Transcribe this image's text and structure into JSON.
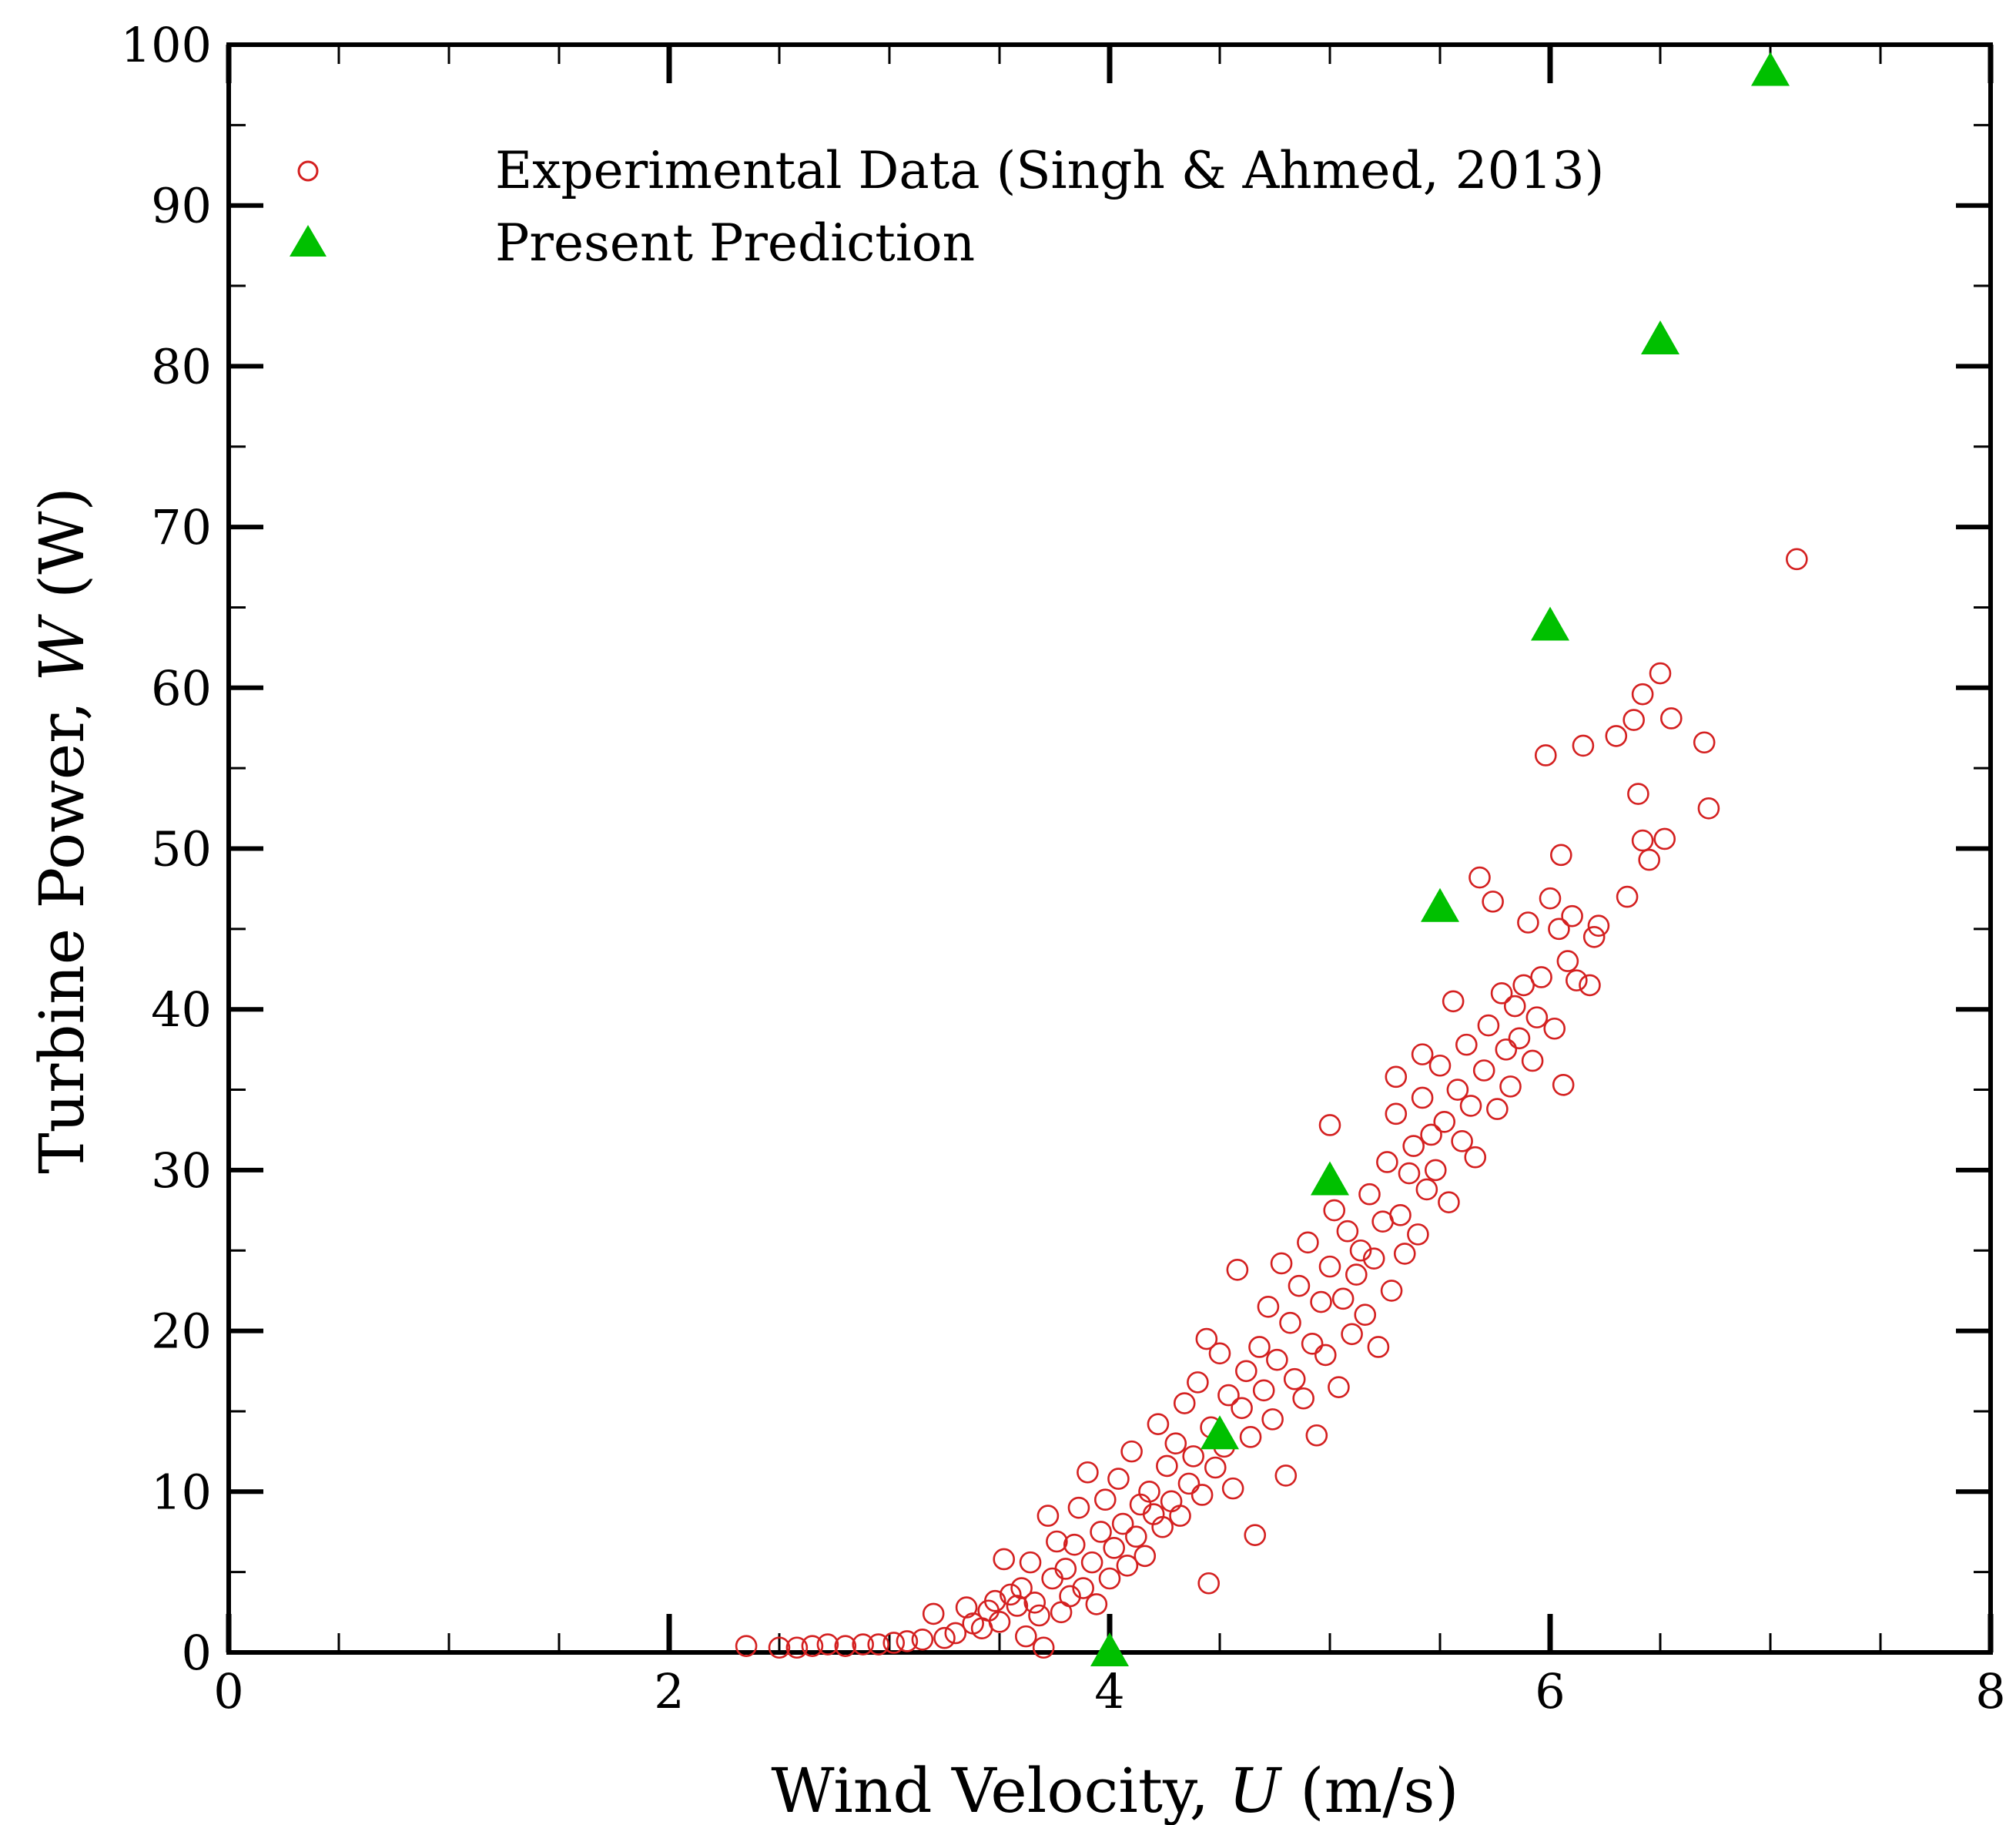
{
  "chart_data": {
    "type": "scatter",
    "title": "",
    "xlabel": {
      "prefix": "Wind Velocity, ",
      "var": "U",
      "suffix": " (m/s)"
    },
    "ylabel": {
      "prefix": "Turbine Power, ",
      "var": "W",
      "suffix": " (W)"
    },
    "xlim": [
      0,
      8
    ],
    "ylim": [
      0,
      100
    ],
    "xticks": [
      0,
      2,
      4,
      6,
      8
    ],
    "yticks": [
      0,
      10,
      20,
      30,
      40,
      50,
      60,
      70,
      80,
      90,
      100
    ],
    "grid": false,
    "legend_position": "top-left",
    "series": [
      {
        "name": "Experimental Data (Singh & Ahmed, 2013)",
        "marker": "open-circle",
        "color": "#d42020",
        "points": [
          [
            2.35,
            0.4
          ],
          [
            2.5,
            0.3
          ],
          [
            2.58,
            0.3
          ],
          [
            2.65,
            0.4
          ],
          [
            2.72,
            0.5
          ],
          [
            2.8,
            0.4
          ],
          [
            2.88,
            0.5
          ],
          [
            2.95,
            0.5
          ],
          [
            3.02,
            0.6
          ],
          [
            3.08,
            0.7
          ],
          [
            3.15,
            0.8
          ],
          [
            3.2,
            2.4
          ],
          [
            3.25,
            0.9
          ],
          [
            3.3,
            1.2
          ],
          [
            3.35,
            2.8
          ],
          [
            3.38,
            1.8
          ],
          [
            3.42,
            1.5
          ],
          [
            3.45,
            2.6
          ],
          [
            3.48,
            3.2
          ],
          [
            3.5,
            1.9
          ],
          [
            3.52,
            5.8
          ],
          [
            3.55,
            3.6
          ],
          [
            3.58,
            2.9
          ],
          [
            3.6,
            4.0
          ],
          [
            3.62,
            1.0
          ],
          [
            3.64,
            5.6
          ],
          [
            3.66,
            3.1
          ],
          [
            3.68,
            2.3
          ],
          [
            3.7,
            0.3
          ],
          [
            3.72,
            8.5
          ],
          [
            3.74,
            4.6
          ],
          [
            3.76,
            6.9
          ],
          [
            3.78,
            2.5
          ],
          [
            3.8,
            5.2
          ],
          [
            3.82,
            3.5
          ],
          [
            3.84,
            6.7
          ],
          [
            3.86,
            9.0
          ],
          [
            3.88,
            4.0
          ],
          [
            3.9,
            11.2
          ],
          [
            3.92,
            5.6
          ],
          [
            3.94,
            3.0
          ],
          [
            3.96,
            7.5
          ],
          [
            3.98,
            9.5
          ],
          [
            4.0,
            4.6
          ],
          [
            4.02,
            6.5
          ],
          [
            4.04,
            10.8
          ],
          [
            4.06,
            8.0
          ],
          [
            4.08,
            5.4
          ],
          [
            4.1,
            12.5
          ],
          [
            4.12,
            7.2
          ],
          [
            4.14,
            9.2
          ],
          [
            4.16,
            6.0
          ],
          [
            4.18,
            10.0
          ],
          [
            4.2,
            8.6
          ],
          [
            4.22,
            14.2
          ],
          [
            4.24,
            7.8
          ],
          [
            4.26,
            11.6
          ],
          [
            4.28,
            9.4
          ],
          [
            4.3,
            13.0
          ],
          [
            4.32,
            8.5
          ],
          [
            4.34,
            15.5
          ],
          [
            4.36,
            10.5
          ],
          [
            4.38,
            12.2
          ],
          [
            4.4,
            16.8
          ],
          [
            4.42,
            9.8
          ],
          [
            4.44,
            19.5
          ],
          [
            4.45,
            4.3
          ],
          [
            4.46,
            14.0
          ],
          [
            4.48,
            11.5
          ],
          [
            4.5,
            18.6
          ],
          [
            4.52,
            12.8
          ],
          [
            4.54,
            16.0
          ],
          [
            4.56,
            10.2
          ],
          [
            4.58,
            23.8
          ],
          [
            4.6,
            15.2
          ],
          [
            4.62,
            17.5
          ],
          [
            4.64,
            13.4
          ],
          [
            4.66,
            7.3
          ],
          [
            4.68,
            19.0
          ],
          [
            4.7,
            16.3
          ],
          [
            4.72,
            21.5
          ],
          [
            4.74,
            14.5
          ],
          [
            4.76,
            18.2
          ],
          [
            4.78,
            24.2
          ],
          [
            4.8,
            11.0
          ],
          [
            4.82,
            20.5
          ],
          [
            4.84,
            17.0
          ],
          [
            4.86,
            22.8
          ],
          [
            4.88,
            15.8
          ],
          [
            4.9,
            25.5
          ],
          [
            4.92,
            19.2
          ],
          [
            4.94,
            13.5
          ],
          [
            4.96,
            21.8
          ],
          [
            4.98,
            18.5
          ],
          [
            5.0,
            24.0
          ],
          [
            5.0,
            32.8
          ],
          [
            5.02,
            27.5
          ],
          [
            5.04,
            16.5
          ],
          [
            5.06,
            22.0
          ],
          [
            5.08,
            26.2
          ],
          [
            5.1,
            19.8
          ],
          [
            5.12,
            23.5
          ],
          [
            5.14,
            25.0
          ],
          [
            5.16,
            21.0
          ],
          [
            5.18,
            28.5
          ],
          [
            5.2,
            24.5
          ],
          [
            5.22,
            19.0
          ],
          [
            5.24,
            26.8
          ],
          [
            5.26,
            30.5
          ],
          [
            5.28,
            22.5
          ],
          [
            5.3,
            33.5
          ],
          [
            5.3,
            35.8
          ],
          [
            5.32,
            27.2
          ],
          [
            5.34,
            24.8
          ],
          [
            5.36,
            29.8
          ],
          [
            5.38,
            31.5
          ],
          [
            5.4,
            26.0
          ],
          [
            5.42,
            34.5
          ],
          [
            5.42,
            37.2
          ],
          [
            5.44,
            28.8
          ],
          [
            5.46,
            32.2
          ],
          [
            5.48,
            30.0
          ],
          [
            5.5,
            36.5
          ],
          [
            5.52,
            33.0
          ],
          [
            5.54,
            28.0
          ],
          [
            5.56,
            40.5
          ],
          [
            5.58,
            35.0
          ],
          [
            5.6,
            31.8
          ],
          [
            5.62,
            37.8
          ],
          [
            5.64,
            34.0
          ],
          [
            5.66,
            30.8
          ],
          [
            5.68,
            48.2
          ],
          [
            5.7,
            36.2
          ],
          [
            5.72,
            39.0
          ],
          [
            5.74,
            46.7
          ],
          [
            5.76,
            33.8
          ],
          [
            5.78,
            41.0
          ],
          [
            5.8,
            37.5
          ],
          [
            5.82,
            35.2
          ],
          [
            5.84,
            40.2
          ],
          [
            5.86,
            38.2
          ],
          [
            5.88,
            41.5
          ],
          [
            5.9,
            45.4
          ],
          [
            5.92,
            36.8
          ],
          [
            5.94,
            39.5
          ],
          [
            5.96,
            42.0
          ],
          [
            5.98,
            55.8
          ],
          [
            6.0,
            46.9
          ],
          [
            6.02,
            38.8
          ],
          [
            6.04,
            45.0
          ],
          [
            6.05,
            49.6
          ],
          [
            6.06,
            35.3
          ],
          [
            6.08,
            43.0
          ],
          [
            6.1,
            45.8
          ],
          [
            6.12,
            41.8
          ],
          [
            6.15,
            56.4
          ],
          [
            6.18,
            41.5
          ],
          [
            6.2,
            44.5
          ],
          [
            6.22,
            45.2
          ],
          [
            6.3,
            57.0
          ],
          [
            6.35,
            47.0
          ],
          [
            6.38,
            58.0
          ],
          [
            6.4,
            53.4
          ],
          [
            6.42,
            59.6
          ],
          [
            6.42,
            50.5
          ],
          [
            6.45,
            49.3
          ],
          [
            6.5,
            60.9
          ],
          [
            6.52,
            50.6
          ],
          [
            6.55,
            58.1
          ],
          [
            6.7,
            56.6
          ],
          [
            6.72,
            52.5
          ],
          [
            7.12,
            68.0
          ]
        ]
      },
      {
        "name": "Present Prediction",
        "marker": "filled-triangle",
        "color": "#00c000",
        "points": [
          [
            4.0,
            0.0
          ],
          [
            4.5,
            13.5
          ],
          [
            5.0,
            29.3
          ],
          [
            5.5,
            46.3
          ],
          [
            6.0,
            63.8
          ],
          [
            6.5,
            81.6
          ],
          [
            7.0,
            98.3
          ]
        ]
      }
    ]
  }
}
